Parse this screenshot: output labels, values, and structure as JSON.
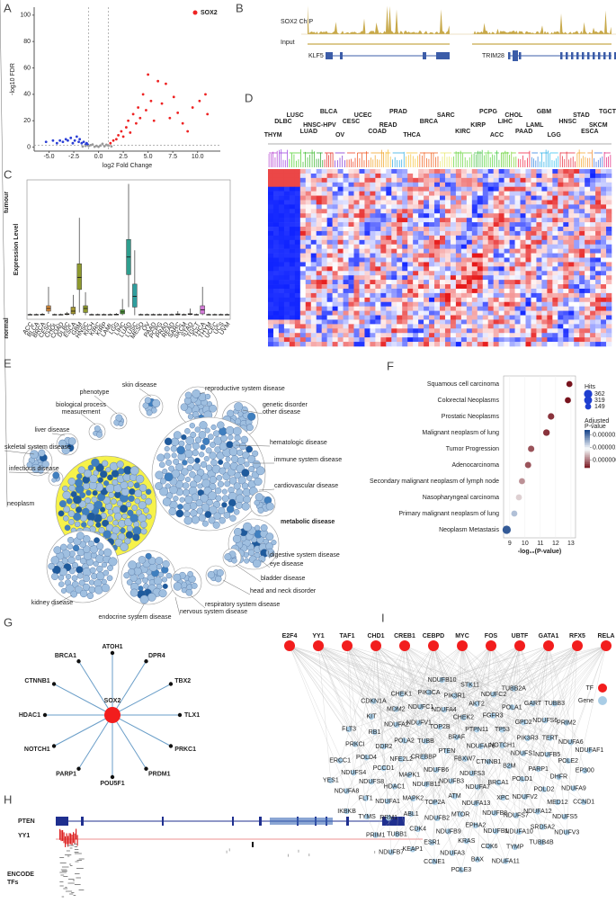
{
  "panel_labels": [
    "A",
    "B",
    "C",
    "D",
    "E",
    "F",
    "G",
    "H",
    "I"
  ],
  "chart_data": [
    {
      "type": "scatter",
      "xlabel": "log2 Fold Change",
      "ylabel": "-log10 FDR",
      "xlim": [
        -6.5,
        12.3
      ],
      "xticks": [
        {
          "value": -5,
          "label": "-5.0"
        },
        {
          "value": -2.5,
          "label": "-2.5"
        },
        {
          "value": 0,
          "label": "0.0"
        },
        {
          "value": 2.5,
          "label": "2.5"
        },
        {
          "value": 5,
          "label": "5.0"
        },
        {
          "value": 7.5,
          "label": "7.5"
        },
        {
          "value": 10,
          "label": "10.0"
        }
      ],
      "ylim": [
        -3,
        106
      ],
      "yticks": [
        0,
        20,
        40,
        60,
        80,
        100
      ],
      "vlines": [
        -1,
        1
      ],
      "hline": 1.3,
      "legend": "upper right",
      "series": [
        {
          "color": "#2b3fd6",
          "x": [
            -5.3,
            -4.6,
            -4.2,
            -3.9,
            -3.6,
            -3.3,
            -3.1,
            -2.8,
            -2.6,
            -2.4,
            -2.2,
            -2.0,
            -1.9,
            -1.7,
            -1.5,
            -1.3,
            -1.2,
            -1.1
          ],
          "y": [
            4,
            5,
            3,
            5,
            4,
            6,
            5,
            7,
            3,
            5,
            8,
            4,
            6,
            3,
            4,
            2,
            3,
            2
          ]
        },
        {
          "color": "#9a9a9a",
          "x": [
            -1.6,
            -1.3,
            -1.0,
            -0.8,
            -0.6,
            -0.4,
            -0.2,
            0,
            0.2,
            0.4,
            0.6,
            0.8,
            1.0,
            1.3
          ],
          "y": [
            0.5,
            1,
            0.8,
            1.5,
            2,
            0.3,
            1,
            0.2,
            1.2,
            2.5,
            0.7,
            1.8,
            1.1,
            0.6
          ]
        },
        {
          "name": "SOX2",
          "color": "#ee2222",
          "x": [
            1.2,
            1.5,
            1.8,
            2.0,
            2.3,
            2.5,
            2.8,
            3.0,
            3.2,
            3.5,
            3.8,
            4.0,
            4.2,
            4.5,
            4.8,
            5.0,
            5.3,
            5.6,
            6.0,
            6.4,
            6.8,
            7.2,
            7.6,
            8.0,
            8.5,
            9.0,
            9.5,
            10.2,
            10.8,
            11.0
          ],
          "y": [
            3,
            5,
            6,
            9,
            12,
            8,
            15,
            20,
            11,
            25,
            18,
            30,
            22,
            40,
            28,
            55,
            35,
            20,
            50,
            33,
            48,
            22,
            38,
            26,
            18,
            12,
            30,
            35,
            40,
            25
          ]
        }
      ]
    },
    {
      "type": "box",
      "ylabel": "Expression Level",
      "group_labels": [
        "tumour",
        "normal"
      ],
      "categories": [
        "ACC",
        "BLCA",
        "BRCA",
        "CESC",
        "CHOL",
        "COAD",
        "DLBC",
        "ESCA",
        "GBM",
        "HNSC",
        "KICH",
        "KIRC",
        "KIRP",
        "LAML",
        "LGG",
        "LIHC",
        "LUAD",
        "LUSC",
        "MESO",
        "OV",
        "PAAD",
        "PCPG",
        "PRAD",
        "READ",
        "SARC",
        "SKCM",
        "STAD",
        "TGCT",
        "THCA",
        "THYM",
        "UCEC",
        "UCS",
        "UVM"
      ],
      "highlight": [
        8,
        14
      ],
      "colors": [
        "#8d7b5c",
        "#8d7b5c",
        "#8d7b5c",
        "#d98b3a",
        "#8d7b5c",
        "#8d7b5c",
        "#c9a13a",
        "#a79a35",
        "#8f9a2e",
        "#8f9a2e",
        "#8d7b5c",
        "#8d7b5c",
        "#8d7b5c",
        "#8d7b5c",
        "#8d7b5c",
        "#4f9a3c",
        "#2f9e8e",
        "#2f9e9e",
        "#8d7b5c",
        "#8d7b5c",
        "#8d7b5c",
        "#8d7b5c",
        "#8d7b5c",
        "#8d7b5c",
        "#8d7b5c",
        "#8d7b5c",
        "#8d7b5c",
        "#8d7b5c",
        "#d27ad6",
        "#8d7b5c",
        "#8d7b5c",
        "#8d7b5c",
        "#8d7b5c"
      ],
      "ylim": [
        -15,
        500
      ],
      "values": [
        {
          "min": 0,
          "q1": 1,
          "median": 2,
          "q3": 3,
          "max": 6
        },
        {
          "min": 0,
          "q1": 1,
          "median": 2,
          "q3": 3,
          "max": 6
        },
        {
          "min": 0,
          "q1": 1,
          "median": 2,
          "q3": 4,
          "max": 8
        },
        {
          "min": 5,
          "q1": 15,
          "median": 25,
          "q3": 35,
          "max": 105
        },
        {
          "min": 0,
          "q1": 1,
          "median": 2,
          "q3": 3,
          "max": 6
        },
        {
          "min": 0,
          "q1": 1,
          "median": 2,
          "q3": 3,
          "max": 6
        },
        {
          "min": 0,
          "q1": 2,
          "median": 4,
          "q3": 6,
          "max": 12
        },
        {
          "min": 0,
          "q1": 5,
          "median": 15,
          "q3": 30,
          "max": 75
        },
        {
          "min": 10,
          "q1": 95,
          "median": 140,
          "q3": 190,
          "max": 360
        },
        {
          "min": 0,
          "q1": 10,
          "median": 25,
          "q3": 35,
          "max": 85
        },
        {
          "min": 0,
          "q1": 1,
          "median": 2,
          "q3": 3,
          "max": 6
        },
        {
          "min": 0,
          "q1": 1,
          "median": 2,
          "q3": 3,
          "max": 6
        },
        {
          "min": 0,
          "q1": 1,
          "median": 2,
          "q3": 3,
          "max": 6
        },
        {
          "min": 0,
          "q1": 1,
          "median": 2,
          "q3": 3,
          "max": 6
        },
        {
          "min": 0,
          "q1": 1,
          "median": 2,
          "q3": 4,
          "max": 8
        },
        {
          "min": 0,
          "q1": 5,
          "median": 12,
          "q3": 20,
          "max": 60
        },
        {
          "min": 30,
          "q1": 150,
          "median": 215,
          "q3": 280,
          "max": 485
        },
        {
          "min": 0,
          "q1": 30,
          "median": 70,
          "q3": 115,
          "max": 240
        },
        {
          "min": 0,
          "q1": 1,
          "median": 2,
          "q3": 3,
          "max": 6
        },
        {
          "min": 0,
          "q1": 1,
          "median": 2,
          "q3": 3,
          "max": 6
        },
        {
          "min": 0,
          "q1": 1,
          "median": 2,
          "q3": 3,
          "max": 6
        },
        {
          "min": 0,
          "q1": 1,
          "median": 2,
          "q3": 3,
          "max": 6
        },
        {
          "min": 0,
          "q1": 1,
          "median": 2,
          "q3": 3,
          "max": 6
        },
        {
          "min": 0,
          "q1": 1,
          "median": 2,
          "q3": 3,
          "max": 6
        },
        {
          "min": 0,
          "q1": 1,
          "median": 3,
          "q3": 5,
          "max": 15
        },
        {
          "min": 0,
          "q1": 1,
          "median": 2,
          "q3": 3,
          "max": 6
        },
        {
          "min": 0,
          "q1": 2,
          "median": 4,
          "q3": 6,
          "max": 25
        },
        {
          "min": 0,
          "q1": 1,
          "median": 2,
          "q3": 3,
          "max": 6
        },
        {
          "min": 0,
          "q1": 5,
          "median": 20,
          "q3": 35,
          "max": 105
        },
        {
          "min": 0,
          "q1": 1,
          "median": 2,
          "q3": 3,
          "max": 6
        },
        {
          "min": 0,
          "q1": 1,
          "median": 2,
          "q3": 3,
          "max": 6
        },
        {
          "min": 0,
          "q1": 1,
          "median": 2,
          "q3": 3,
          "max": 6
        },
        {
          "min": 0,
          "q1": 1,
          "median": 2,
          "q3": 3,
          "max": 6
        }
      ]
    },
    {
      "type": "dot",
      "xlabel": "-log₁₀(P-value)",
      "categories": [
        "Squamous cell carcinoma",
        "Colorectal Neoplasms",
        "Prostatic Neoplasms",
        "Malignant neoplasm of lung",
        "Tumor Progression",
        "Adenocarcinoma",
        "Secondary malignant neoplasm of lymph node",
        "Nasopharyngeal carcinoma",
        "Primary malignant neoplasm of lung",
        "Neoplasm Metastasis"
      ],
      "x": [
        12.9,
        12.8,
        11.7,
        11.4,
        10.4,
        10.2,
        9.8,
        9.6,
        9.3,
        8.8
      ],
      "hits": [
        149,
        149,
        180,
        190,
        170,
        160,
        150,
        149,
        150,
        362
      ],
      "adj_p": [
        2e-07,
        2e-07,
        3e-07,
        3e-07,
        4e-07,
        4e-07,
        6e-07,
        8e-07,
        1.2e-06,
        1.6e-06
      ],
      "xlim": [
        8.6,
        13.3
      ],
      "xticks": [
        9,
        10,
        11,
        12,
        13
      ],
      "size_legend_title": "Hits",
      "size_legend": [
        362,
        319,
        149
      ],
      "color_legend_title": [
        "Adjusted",
        "P-value"
      ],
      "clim": [
        2e-07,
        1.7e-06
      ],
      "color_ticks": [
        {
          "value": 1.5e-06,
          "label": "0.0000015"
        },
        {
          "value": 1e-06,
          "label": "0.0000010"
        },
        {
          "value": 5e-07,
          "label": "0.0000005"
        }
      ]
    }
  ],
  "tracks_B": {
    "tracks": [
      "SOX2 ChIP",
      "Input"
    ],
    "genes": [
      "KLF5",
      "TRIM28"
    ]
  },
  "heatmap_D": {
    "groups": [
      {
        "label": "THYM",
        "color": "#b23ad0"
      },
      {
        "label": "DLBC",
        "color": "#9a3fe0"
      },
      {
        "label": "LUSC",
        "color": "#4ccf2a"
      },
      {
        "label": "LUAD",
        "color": "#3ab82a"
      },
      {
        "label": "HNSC-HPV",
        "color": "#2aa02a"
      },
      {
        "label": "BLCA",
        "color": "#e2231a"
      },
      {
        "label": "OV",
        "color": "#7b2ad0"
      },
      {
        "label": "CESC",
        "color": "#ee3a1a"
      },
      {
        "label": "UCEC",
        "color": "#f0501a"
      },
      {
        "label": "COAD",
        "color": "#f0a020"
      },
      {
        "label": "READ",
        "color": "#f5b82a"
      },
      {
        "label": "PRAD",
        "color": "#28a8e0"
      },
      {
        "label": "THCA",
        "color": "#f5c030"
      },
      {
        "label": "BRCA",
        "color": "#f05a14"
      },
      {
        "label": "SARC",
        "color": "#e8e86a"
      },
      {
        "label": "KIRC",
        "color": "#66d43a"
      },
      {
        "label": "KIRP",
        "color": "#40c040"
      },
      {
        "label": "PCPG",
        "color": "#5ad63a"
      },
      {
        "label": "ACC",
        "color": "#3cc83c"
      },
      {
        "label": "LIHC",
        "color": "#5ecf2a"
      },
      {
        "label": "CHOL",
        "color": "#7ad02a"
      },
      {
        "label": "PAAD",
        "color": "#f01e3c"
      },
      {
        "label": "LAML",
        "color": "#2a7fe0"
      },
      {
        "label": "GBM",
        "color": "#28b0e8"
      },
      {
        "label": "LGG",
        "color": "#30c0f0"
      },
      {
        "label": "HNSC",
        "color": "#e8283a"
      },
      {
        "label": "STAD",
        "color": "#f5a52a"
      },
      {
        "label": "ESCA",
        "color": "#f08a2a"
      },
      {
        "label": "SKCM",
        "color": "#3a70e0"
      },
      {
        "label": "TGCT",
        "color": "#e0207a"
      }
    ]
  },
  "disease_map_E": {
    "highlight": 12,
    "categories": [
      "skin disease",
      "reproductive system disease",
      "phenotype",
      [
        "genetic disorder",
        "other disease"
      ],
      [
        "biological process",
        "measurement"
      ],
      "liver disease",
      "hematologic disease",
      "skeletal system disease",
      "immune system disease",
      "infectious disease",
      "cardiovascular disease",
      "neoplasm",
      "metabolic disease",
      "digestive system disease",
      "eye disease",
      "bladder disease",
      "kidney disease",
      "head and neck disorder",
      "respiratory system disease",
      "endocrine system disease",
      "nervous system disease"
    ]
  },
  "network_G": {
    "center": "SOX2",
    "nodes": [
      "ATOH1",
      "DPR4",
      "TBX2",
      "TLX1",
      "PRKC1",
      "PRDM1",
      "POU5F1",
      "PARP1",
      "NOTCH1",
      "HDAC1",
      "CTNNB1",
      "BRCA1"
    ]
  },
  "tracks_H": {
    "gene": "PTEN",
    "tf": "YY1",
    "encode": [
      "ENCODE",
      "TFs"
    ]
  },
  "network_I": {
    "legend": [
      "TF",
      "Gene"
    ],
    "tfs": [
      "E2F4",
      "YY1",
      "TAF1",
      "CHD1",
      "CREB1",
      "CEBPD",
      "MYC",
      "FOS",
      "UBTF",
      "GATA1",
      "RFX5",
      "RELA"
    ],
    "genes": [
      "NDUFS3",
      "NDUFB3",
      "FBXW7",
      "NDUFA7",
      "NDUFB6",
      "CTNNB1",
      "ATM",
      "PTEN",
      "BRCA1",
      "NDUFB11",
      "NDUFAF6",
      "NDUFA13",
      "CREBBP",
      "B2M",
      "TOP2A",
      "BRAF",
      "XPC",
      "MAPK1",
      "NOTCH1",
      "MTOR",
      "TUBB",
      "POLD1",
      "MAPK2",
      "PTPN11",
      "NDUFB8",
      "NFE2L2",
      "NDUFS1",
      "NDUFB2",
      "TOP2B",
      "NDUFV2",
      "HDAC1",
      "TP53",
      "EPHA2",
      "POLA2",
      "PARP1",
      "ABL1",
      "CHEK2",
      "NDUFS7",
      "PCCD1",
      "PIK3R3",
      "NDUFB9",
      "NDUFV1",
      "POLD2",
      "NDUFA1",
      "FGFR3",
      "NDUFB1",
      "DDR2",
      "NDUFB5",
      "CDK4",
      "NDUFA4",
      "NDUFA12",
      "NDUFS8",
      "GPD2",
      "KRAS",
      "NDUFA2",
      "DHFR",
      "RRM1",
      "AKT2",
      "NDUFA10",
      "POLD4",
      "TERT",
      "ESR1",
      "NDUFC1",
      "MED12",
      "FLT1",
      "POLA1",
      "CDK6",
      "RB1",
      "POLE2",
      "TUBB1",
      "PIK3R1",
      "SRD5A2",
      "NDUFS4",
      "NDUFS6",
      "NDUFA3",
      "MDM2",
      "NDUFA9",
      "TYMS",
      "NDUFC2",
      "TYMP",
      "PRKCI",
      "NDUFA6",
      "KEAP1",
      "PIK3CA",
      "NDUFS5",
      "NDUFA8",
      "GART",
      "BAX",
      "KIT",
      "EP300",
      "PRIM1",
      "STK11",
      "TUBB4B",
      "ERCC1",
      "PRIM2",
      "CCNE1",
      "CHEK1",
      "CCND1",
      "IKBKB",
      "TUBB2A",
      "NDUFA11",
      "FLT3",
      "NDUFAF1",
      "NDUFB7",
      "NDUFB10",
      "NDUFV3",
      "YES1",
      "TUBB3",
      "POLE3",
      "CDKN1A"
    ]
  }
}
